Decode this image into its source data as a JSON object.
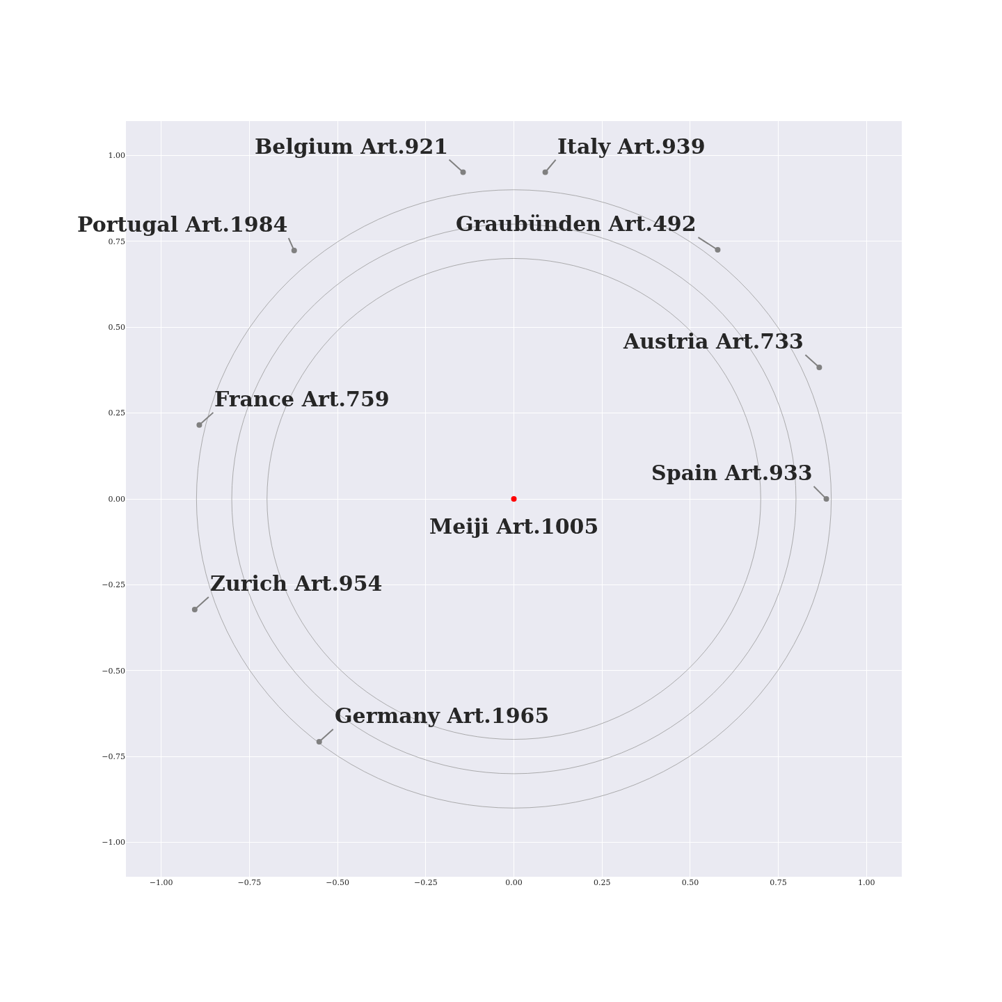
{
  "chart_data": {
    "type": "scatter",
    "series": [
      {
        "x": [
          -0.144,
          0.089,
          -0.623,
          0.578,
          0.866,
          -0.892,
          0.886,
          -0.905,
          -0.552,
          0
        ],
        "values": [
          0.951,
          0.951,
          0.723,
          0.725,
          0.383,
          0.215,
          0,
          -0.322,
          -0.707,
          0
        ],
        "colors": [
          "#808080",
          "#808080",
          "#808080",
          "#808080",
          "#808080",
          "#808080",
          "#808080",
          "#808080",
          "#808080",
          "#ff0000"
        ],
        "value_labels": [
          "Belgium Art.921",
          "Italy Art.939",
          "Portugal Art.1984",
          "Graubünden Art.492",
          "Austria Art.733",
          "France Art.759",
          "Spain Art.933",
          "Zurich Art.954",
          "Germany Art.1965",
          "Meiji Art.1005"
        ],
        "marker": "circle"
      }
    ],
    "xlim": [
      -1.1,
      1.1
    ],
    "ylim": [
      -1.1,
      1.1
    ],
    "xticks": [
      {
        "value": -1,
        "label": "−1.00"
      },
      {
        "value": -0.75,
        "label": "−0.75"
      },
      {
        "value": -0.5,
        "label": "−0.50"
      },
      {
        "value": -0.25,
        "label": "−0.25"
      },
      {
        "value": 0,
        "label": "0.00"
      },
      {
        "value": 0.25,
        "label": "0.25"
      },
      {
        "value": 0.5,
        "label": "0.50"
      },
      {
        "value": 0.75,
        "label": "0.75"
      },
      {
        "value": 1,
        "label": "1.00"
      }
    ],
    "yticks": [
      {
        "value": -1,
        "label": "−1.00"
      },
      {
        "value": -0.75,
        "label": "−0.75"
      },
      {
        "value": -0.5,
        "label": "−0.50"
      },
      {
        "value": -0.25,
        "label": "−0.25"
      },
      {
        "value": 0,
        "label": "0.00"
      },
      {
        "value": 0.25,
        "label": "0.25"
      },
      {
        "value": 0.5,
        "label": "0.50"
      },
      {
        "value": 0.75,
        "label": "0.75"
      },
      {
        "value": 1,
        "label": "1.00"
      }
    ],
    "grid": true
  }
}
